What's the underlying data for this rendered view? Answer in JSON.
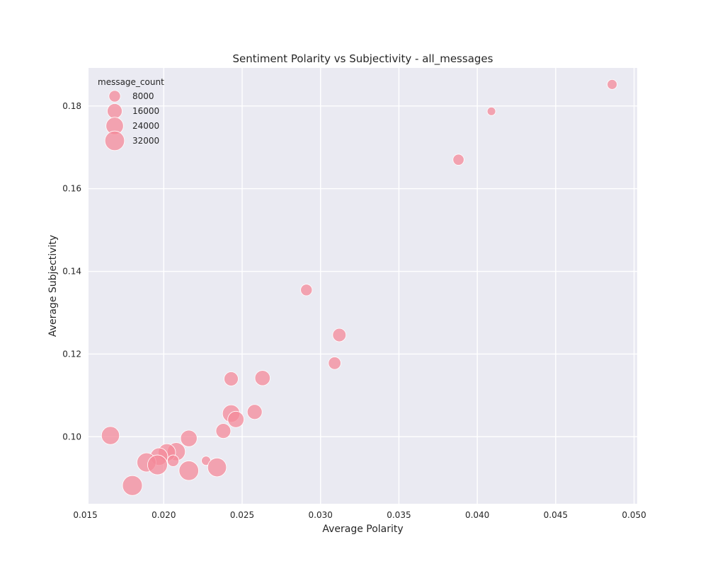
{
  "chart_data": {
    "type": "scatter",
    "title": "Sentiment Polarity vs Subjectivity - all_messages",
    "xlabel": "Average Polarity",
    "ylabel": "Average Subjectivity",
    "xlim": [
      0.0152,
      0.0502
    ],
    "ylim": [
      0.0838,
      0.1892
    ],
    "xticks": [
      0.015,
      0.02,
      0.025,
      0.03,
      0.035,
      0.04,
      0.045,
      0.05
    ],
    "xtick_labels": [
      "0.015",
      "0.020",
      "0.025",
      "0.030",
      "0.035",
      "0.040",
      "0.045",
      "0.050"
    ],
    "yticks": [
      0.1,
      0.12,
      0.14,
      0.16,
      0.18
    ],
    "ytick_labels": [
      "0.10",
      "0.12",
      "0.14",
      "0.16",
      "0.18"
    ],
    "grid": true,
    "legend": {
      "title": "message_count",
      "placement": "top-left",
      "entries": [
        {
          "label": "8000",
          "size": 8000
        },
        {
          "label": "16000",
          "size": 16000
        },
        {
          "label": "24000",
          "size": 24000
        },
        {
          "label": "32000",
          "size": 32000
        }
      ]
    },
    "size_variable": "message_count",
    "colors": {
      "point": "#f4899a",
      "point_edge": "#ffffff",
      "plot_background": "#eaeaf2",
      "grid": "#ffffff"
    },
    "points": [
      {
        "x": 0.0486,
        "y": 0.1852,
        "size": 5000
      },
      {
        "x": 0.0409,
        "y": 0.1787,
        "size": 3000
      },
      {
        "x": 0.0388,
        "y": 0.167,
        "size": 7000
      },
      {
        "x": 0.0291,
        "y": 0.1355,
        "size": 8000
      },
      {
        "x": 0.0312,
        "y": 0.1246,
        "size": 12000
      },
      {
        "x": 0.0309,
        "y": 0.1178,
        "size": 10000
      },
      {
        "x": 0.0243,
        "y": 0.114,
        "size": 14000
      },
      {
        "x": 0.0263,
        "y": 0.1142,
        "size": 17000
      },
      {
        "x": 0.0258,
        "y": 0.106,
        "size": 16000
      },
      {
        "x": 0.0243,
        "y": 0.1056,
        "size": 24000
      },
      {
        "x": 0.0246,
        "y": 0.1042,
        "size": 20000
      },
      {
        "x": 0.0238,
        "y": 0.1014,
        "size": 16000
      },
      {
        "x": 0.0216,
        "y": 0.0996,
        "size": 21000
      },
      {
        "x": 0.0166,
        "y": 0.1003,
        "size": 26000
      },
      {
        "x": 0.0208,
        "y": 0.0964,
        "size": 26000
      },
      {
        "x": 0.0202,
        "y": 0.0962,
        "size": 24000
      },
      {
        "x": 0.0197,
        "y": 0.0952,
        "size": 24000
      },
      {
        "x": 0.0206,
        "y": 0.0942,
        "size": 8000
      },
      {
        "x": 0.0227,
        "y": 0.0942,
        "size": 4000
      },
      {
        "x": 0.0189,
        "y": 0.0938,
        "size": 30000
      },
      {
        "x": 0.0196,
        "y": 0.0932,
        "size": 33000
      },
      {
        "x": 0.0234,
        "y": 0.0926,
        "size": 29000
      },
      {
        "x": 0.0216,
        "y": 0.0918,
        "size": 32000
      },
      {
        "x": 0.018,
        "y": 0.0882,
        "size": 33000
      }
    ]
  }
}
